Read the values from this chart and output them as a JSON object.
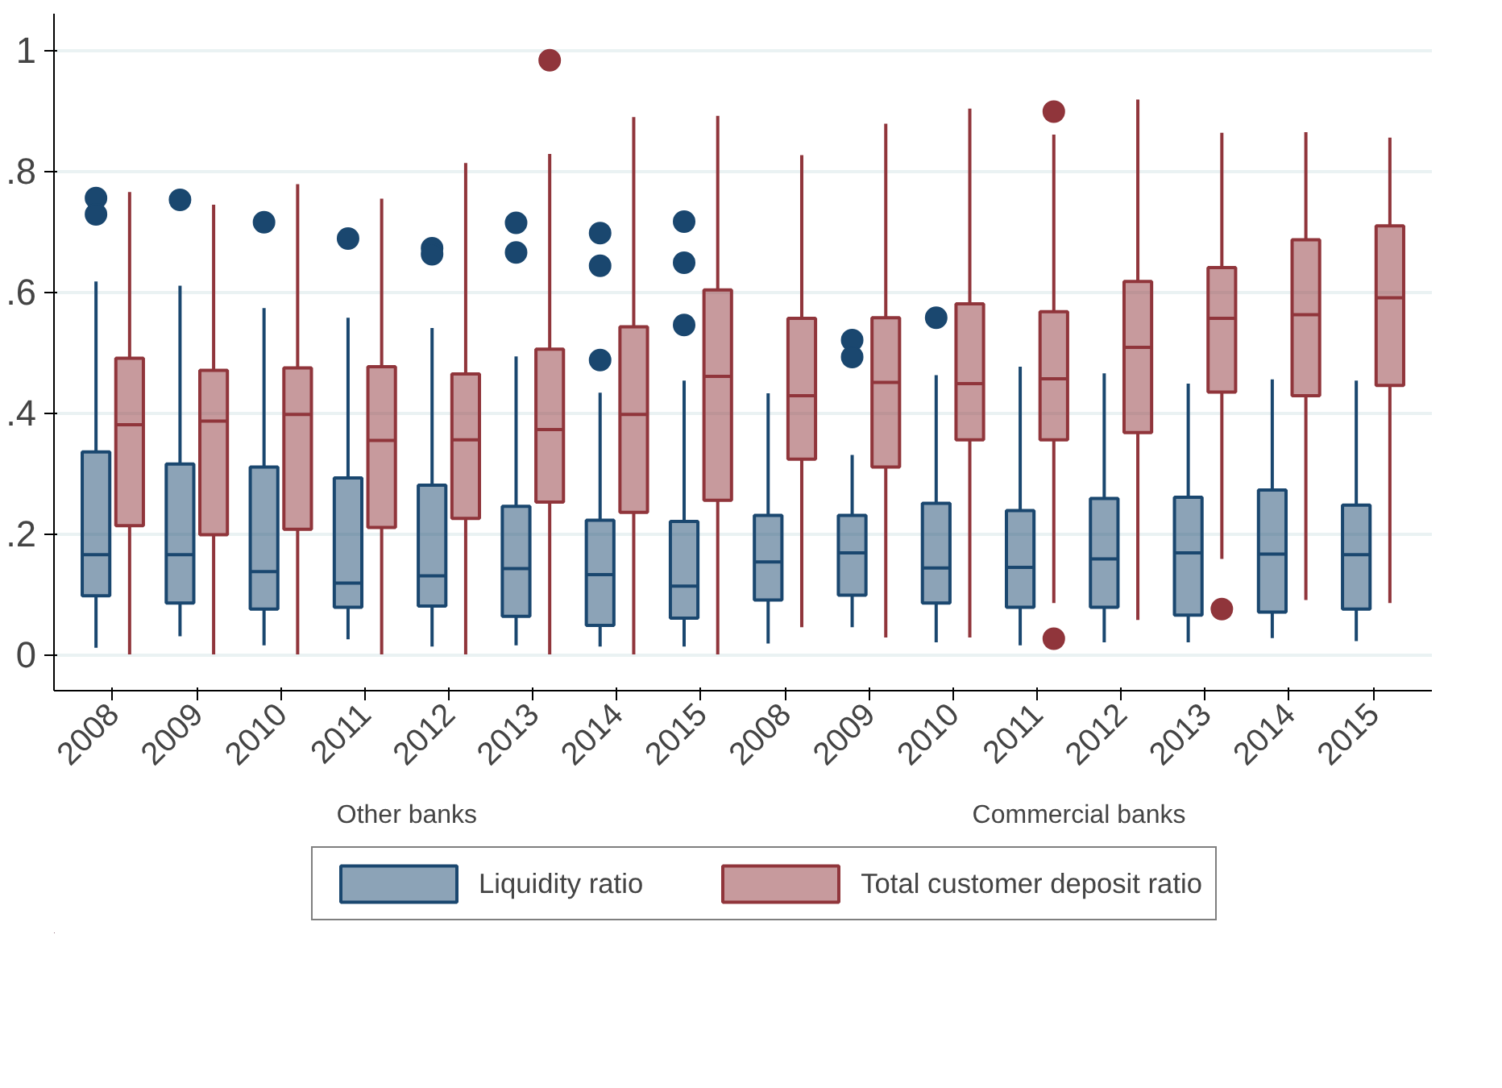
{
  "chart_data": {
    "type": "box",
    "categories": [
      "2008",
      "2009",
      "2010",
      "2011",
      "2012",
      "2013",
      "2014",
      "2015",
      "2008",
      "2009",
      "2010",
      "2011",
      "2012",
      "2013",
      "2014",
      "2015"
    ],
    "annotations": [
      "Other banks",
      "Commercial banks"
    ],
    "ylim": [
      -0.06,
      1.06
    ],
    "yticks": [
      0,
      {
        "value": 0.2,
        "label": ".2"
      },
      {
        "value": 0.4,
        "label": ".4"
      },
      {
        "value": 0.6,
        "label": ".6"
      },
      {
        "value": 0.8,
        "label": ".8"
      },
      1
    ],
    "grid": "y",
    "legend": "bottom",
    "series": [
      {
        "name": "Liquidity ratio",
        "color": "#1a476f",
        "boxes": [
          {
            "low": 0.011,
            "q1": 0.097,
            "median": 0.165,
            "q3": 0.335,
            "high": 0.617,
            "outliers": [
              0.755,
              0.728
            ]
          },
          {
            "low": 0.03,
            "q1": 0.085,
            "median": 0.165,
            "q3": 0.315,
            "high": 0.61,
            "outliers": [
              0.752
            ]
          },
          {
            "low": 0.015,
            "q1": 0.075,
            "median": 0.137,
            "q3": 0.31,
            "high": 0.573,
            "outliers": [
              0.715
            ]
          },
          {
            "low": 0.025,
            "q1": 0.078,
            "median": 0.118,
            "q3": 0.292,
            "high": 0.557,
            "outliers": [
              0.688
            ]
          },
          {
            "low": 0.013,
            "q1": 0.08,
            "median": 0.13,
            "q3": 0.28,
            "high": 0.54,
            "outliers": [
              0.672,
              0.662
            ]
          },
          {
            "low": 0.015,
            "q1": 0.063,
            "median": 0.142,
            "q3": 0.245,
            "high": 0.493,
            "outliers": [
              0.714,
              0.665
            ]
          },
          {
            "low": 0.013,
            "q1": 0.048,
            "median": 0.132,
            "q3": 0.222,
            "high": 0.433,
            "outliers": [
              0.697,
              0.643,
              0.487
            ]
          },
          {
            "low": 0.013,
            "q1": 0.06,
            "median": 0.113,
            "q3": 0.22,
            "high": 0.453,
            "outliers": [
              0.716,
              0.648,
              0.545
            ]
          },
          {
            "low": 0.018,
            "q1": 0.09,
            "median": 0.153,
            "q3": 0.23,
            "high": 0.432
          },
          {
            "low": 0.045,
            "q1": 0.098,
            "median": 0.168,
            "q3": 0.23,
            "high": 0.33,
            "outliers": [
              0.52,
              0.492
            ]
          },
          {
            "low": 0.02,
            "q1": 0.085,
            "median": 0.143,
            "q3": 0.25,
            "high": 0.462,
            "outliers": [
              0.557
            ]
          },
          {
            "low": 0.015,
            "q1": 0.078,
            "median": 0.144,
            "q3": 0.238,
            "high": 0.476
          },
          {
            "low": 0.02,
            "q1": 0.078,
            "median": 0.158,
            "q3": 0.258,
            "high": 0.465
          },
          {
            "low": 0.02,
            "q1": 0.065,
            "median": 0.168,
            "q3": 0.26,
            "high": 0.448
          },
          {
            "low": 0.027,
            "q1": 0.07,
            "median": 0.166,
            "q3": 0.272,
            "high": 0.455
          },
          {
            "low": 0.022,
            "q1": 0.075,
            "median": 0.165,
            "q3": 0.247,
            "high": 0.453
          }
        ]
      },
      {
        "name": "Total customer deposit ratio",
        "color": "#90353b",
        "boxes": [
          {
            "low": 0,
            "q1": 0.213,
            "median": 0.38,
            "q3": 0.49,
            "high": 0.765
          },
          {
            "low": 0,
            "q1": 0.198,
            "median": 0.386,
            "q3": 0.47,
            "high": 0.744
          },
          {
            "low": 0,
            "q1": 0.207,
            "median": 0.397,
            "q3": 0.474,
            "high": 0.778
          },
          {
            "low": 0,
            "q1": 0.21,
            "median": 0.354,
            "q3": 0.476,
            "high": 0.754
          },
          {
            "low": 0,
            "q1": 0.225,
            "median": 0.355,
            "q3": 0.464,
            "high": 0.813
          },
          {
            "low": 0,
            "q1": 0.252,
            "median": 0.372,
            "q3": 0.505,
            "high": 0.828,
            "outliers": [
              0.983
            ]
          },
          {
            "low": 0,
            "q1": 0.235,
            "median": 0.397,
            "q3": 0.542,
            "high": 0.889
          },
          {
            "low": 0,
            "q1": 0.255,
            "median": 0.46,
            "q3": 0.603,
            "high": 0.891
          },
          {
            "low": 0.045,
            "q1": 0.323,
            "median": 0.428,
            "q3": 0.556,
            "high": 0.826
          },
          {
            "low": 0.028,
            "q1": 0.31,
            "median": 0.45,
            "q3": 0.557,
            "high": 0.878
          },
          {
            "low": 0.028,
            "q1": 0.355,
            "median": 0.448,
            "q3": 0.58,
            "high": 0.903
          },
          {
            "low": 0.085,
            "q1": 0.355,
            "median": 0.456,
            "q3": 0.567,
            "high": 0.86,
            "outliers": [
              0.898,
              0.026
            ]
          },
          {
            "low": 0.057,
            "q1": 0.367,
            "median": 0.508,
            "q3": 0.617,
            "high": 0.918
          },
          {
            "low": 0.158,
            "q1": 0.434,
            "median": 0.556,
            "q3": 0.64,
            "high": 0.863,
            "outliers": [
              0.075
            ]
          },
          {
            "low": 0.09,
            "q1": 0.428,
            "median": 0.562,
            "q3": 0.686,
            "high": 0.864
          },
          {
            "low": 0.085,
            "q1": 0.445,
            "median": 0.59,
            "q3": 0.709,
            "high": 0.855
          }
        ]
      }
    ]
  }
}
